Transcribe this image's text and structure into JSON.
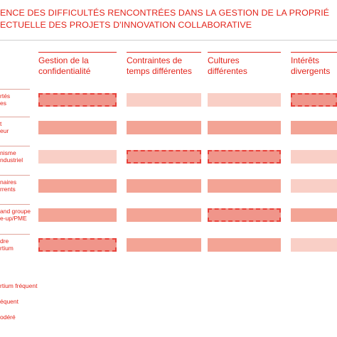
{
  "title": {
    "line1": "ENCE DES DIFFICULTÉS RENCONTRÉES DANS LA GESTION DE LA PROPRIÉ",
    "line2": "ECTUELLE DES PROJETS D'INNOVATION COLLABORATIVE"
  },
  "columns": [
    "Gestion de la\nconfidentialité",
    "Contraintes de\ntemps différentes",
    "Cultures\ndifférentes",
    "Intérêts\ndivergents"
  ],
  "rows": [
    "rtés\nes",
    "t\neur",
    "nisme\nndustriel",
    "naires\nrrents",
    "and groupe\ne-up/PME",
    "dre\nrtium"
  ],
  "legend": [
    "rtium fréquent",
    "équent",
    "odéré"
  ],
  "colors": {
    "title": "#e2231a",
    "very_frequent_fill": "#f0958a",
    "very_frequent_border": "#e8413a",
    "frequent": "#f3a495",
    "moderate": "#f9cfc6"
  },
  "chart_data": {
    "type": "heatmap",
    "categories": [
      "Gestion de la confidentialité",
      "Contraintes de temps différentes",
      "Cultures différentes",
      "Intérêts divergents"
    ],
    "rows": [
      "rtés es",
      "t eur",
      "nisme ndustriel",
      "naires rrents",
      "and groupe e-up/PME",
      "dre rtium"
    ],
    "levels": [
      "odéré",
      "équent",
      "rtium fréquent"
    ],
    "values": [
      [
        3,
        1,
        1,
        3
      ],
      [
        2,
        2,
        2,
        2
      ],
      [
        1,
        3,
        3,
        1
      ],
      [
        2,
        2,
        2,
        1
      ],
      [
        2,
        2,
        3,
        2
      ],
      [
        3,
        2,
        2,
        1
      ]
    ]
  }
}
